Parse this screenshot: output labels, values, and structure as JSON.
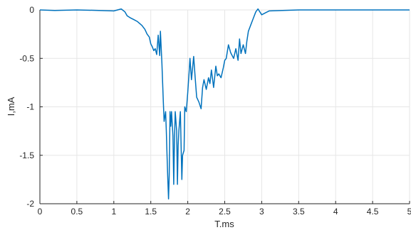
{
  "chart_data": {
    "type": "line",
    "title": "",
    "xlabel": "T.ms",
    "ylabel": "I,mA",
    "xlim": [
      0,
      5
    ],
    "ylim": [
      -2,
      0
    ],
    "grid": true,
    "legend": "none",
    "xticks": [
      0,
      0.5,
      1,
      1.5,
      2,
      2.5,
      3,
      3.5,
      4,
      4.5,
      5
    ],
    "xtick_labels": [
      "0",
      "0.5",
      "1",
      "1.5",
      "2",
      "2.5",
      "3",
      "3.5",
      "4",
      "4.5",
      "5"
    ],
    "yticks": [
      0,
      -0.5,
      -1,
      -1.5,
      -2
    ],
    "ytick_labels": [
      "0",
      "-0.5",
      "-1",
      "-1.5",
      "-2"
    ],
    "series": [
      {
        "color": "#0072BD",
        "x": [
          0,
          0.2,
          0.5,
          0.8,
          1.0,
          1.1,
          1.15,
          1.18,
          1.22,
          1.27,
          1.32,
          1.38,
          1.42,
          1.45,
          1.48,
          1.5,
          1.52,
          1.54,
          1.56,
          1.58,
          1.6,
          1.62,
          1.63,
          1.65,
          1.66,
          1.67,
          1.68,
          1.7,
          1.71,
          1.72,
          1.73,
          1.74,
          1.75,
          1.76,
          1.77,
          1.78,
          1.8,
          1.81,
          1.82,
          1.83,
          1.85,
          1.86,
          1.87,
          1.88,
          1.9,
          1.92,
          1.93,
          1.95,
          1.96,
          1.98,
          2.0,
          2.02,
          2.03,
          2.05,
          2.08,
          2.1,
          2.12,
          2.15,
          2.18,
          2.2,
          2.22,
          2.25,
          2.28,
          2.3,
          2.32,
          2.35,
          2.38,
          2.4,
          2.42,
          2.45,
          2.48,
          2.5,
          2.52,
          2.55,
          2.58,
          2.62,
          2.65,
          2.68,
          2.7,
          2.72,
          2.75,
          2.78,
          2.8,
          2.82,
          2.85,
          2.88,
          2.92,
          2.95,
          3.0,
          3.05,
          3.1,
          3.5,
          4.0,
          4.5,
          5.0
        ],
        "y": [
          0,
          -0.005,
          0,
          -0.005,
          -0.01,
          0.01,
          -0.02,
          -0.06,
          -0.08,
          -0.1,
          -0.12,
          -0.16,
          -0.2,
          -0.25,
          -0.28,
          -0.35,
          -0.38,
          -0.42,
          -0.4,
          -0.46,
          -0.26,
          -0.47,
          -0.22,
          -0.55,
          -0.75,
          -0.95,
          -1.15,
          -1.05,
          -1.25,
          -1.5,
          -1.75,
          -1.95,
          -1.7,
          -1.05,
          -1.2,
          -1.05,
          -1.3,
          -1.8,
          -1.35,
          -1.05,
          -1.25,
          -1.8,
          -1.4,
          -1.25,
          -1.05,
          -1.75,
          -1.5,
          -1.45,
          -1.0,
          -1.05,
          -0.85,
          -0.62,
          -0.5,
          -0.72,
          -0.48,
          -0.7,
          -0.9,
          -0.95,
          -1.02,
          -0.8,
          -0.72,
          -0.82,
          -0.7,
          -0.76,
          -0.62,
          -0.8,
          -0.58,
          -0.68,
          -0.66,
          -0.7,
          -0.6,
          -0.52,
          -0.5,
          -0.36,
          -0.44,
          -0.5,
          -0.4,
          -0.52,
          -0.3,
          -0.45,
          -0.36,
          -0.45,
          -0.32,
          -0.22,
          -0.16,
          -0.1,
          -0.02,
          0.01,
          -0.05,
          -0.03,
          -0.01,
          0,
          0,
          0,
          0
        ]
      }
    ]
  }
}
